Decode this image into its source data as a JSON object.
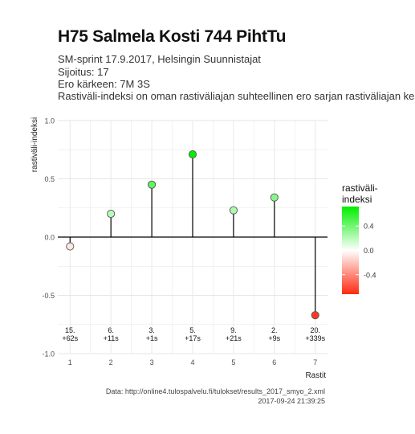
{
  "title": "H75 Salmela Kosti 744 PihtTu",
  "subtitle_lines": [
    "SM-sprint 17.9.2017, Helsingin Suunnistajat",
    "Sijoitus: 17",
    "Ero kärkeen: 7M 3S",
    "Rastiväli-indeksi on oman rastiväliajan suhteellinen ero sarjan rastiväliajan kes"
  ],
  "caption_lines": [
    "Data: http://online4.tulospalvelu.fi/tulokset/results_2017_smyo_2.xml",
    "2017-09-24 21:39:25"
  ],
  "colors": {
    "positive_high": "#00ee00",
    "neutral": "#ffffff",
    "negative_high": "#ff2a10",
    "stem": "#000000",
    "grid": "#e6e6e6"
  },
  "chart_data": {
    "type": "lollipop",
    "xlabel": "Rastit",
    "ylabel": "rastiväli-indeksi",
    "xlim": [
      0.7,
      7.3
    ],
    "ylim": [
      -1.0,
      1.0
    ],
    "x_ticks": [
      "1",
      "2",
      "3",
      "4",
      "5",
      "6",
      "7"
    ],
    "y_ticks": [
      "-1.0",
      "-0.5",
      "0.0",
      "0.5",
      "1.0"
    ],
    "x": [
      1,
      2,
      3,
      4,
      5,
      6,
      7
    ],
    "values": [
      -0.08,
      0.2,
      0.45,
      0.71,
      0.23,
      0.34,
      -0.67
    ],
    "point_labels": [
      [
        "15.",
        "+62s"
      ],
      [
        "6.",
        "+11s"
      ],
      [
        "3.",
        "+1s"
      ],
      [
        "5.",
        "+17s"
      ],
      [
        "9.",
        "+21s"
      ],
      [
        "2.",
        "+9s"
      ],
      [
        "20.",
        "+339s"
      ]
    ],
    "grid": true,
    "legend": {
      "title_lines": [
        "rastiväli-",
        "indeksi"
      ],
      "ticks": [
        "0.4",
        "0.0",
        "-0.4"
      ],
      "tick_values": [
        0.4,
        0.0,
        -0.4
      ],
      "range": [
        -0.72,
        0.72
      ],
      "placement": "right"
    }
  }
}
